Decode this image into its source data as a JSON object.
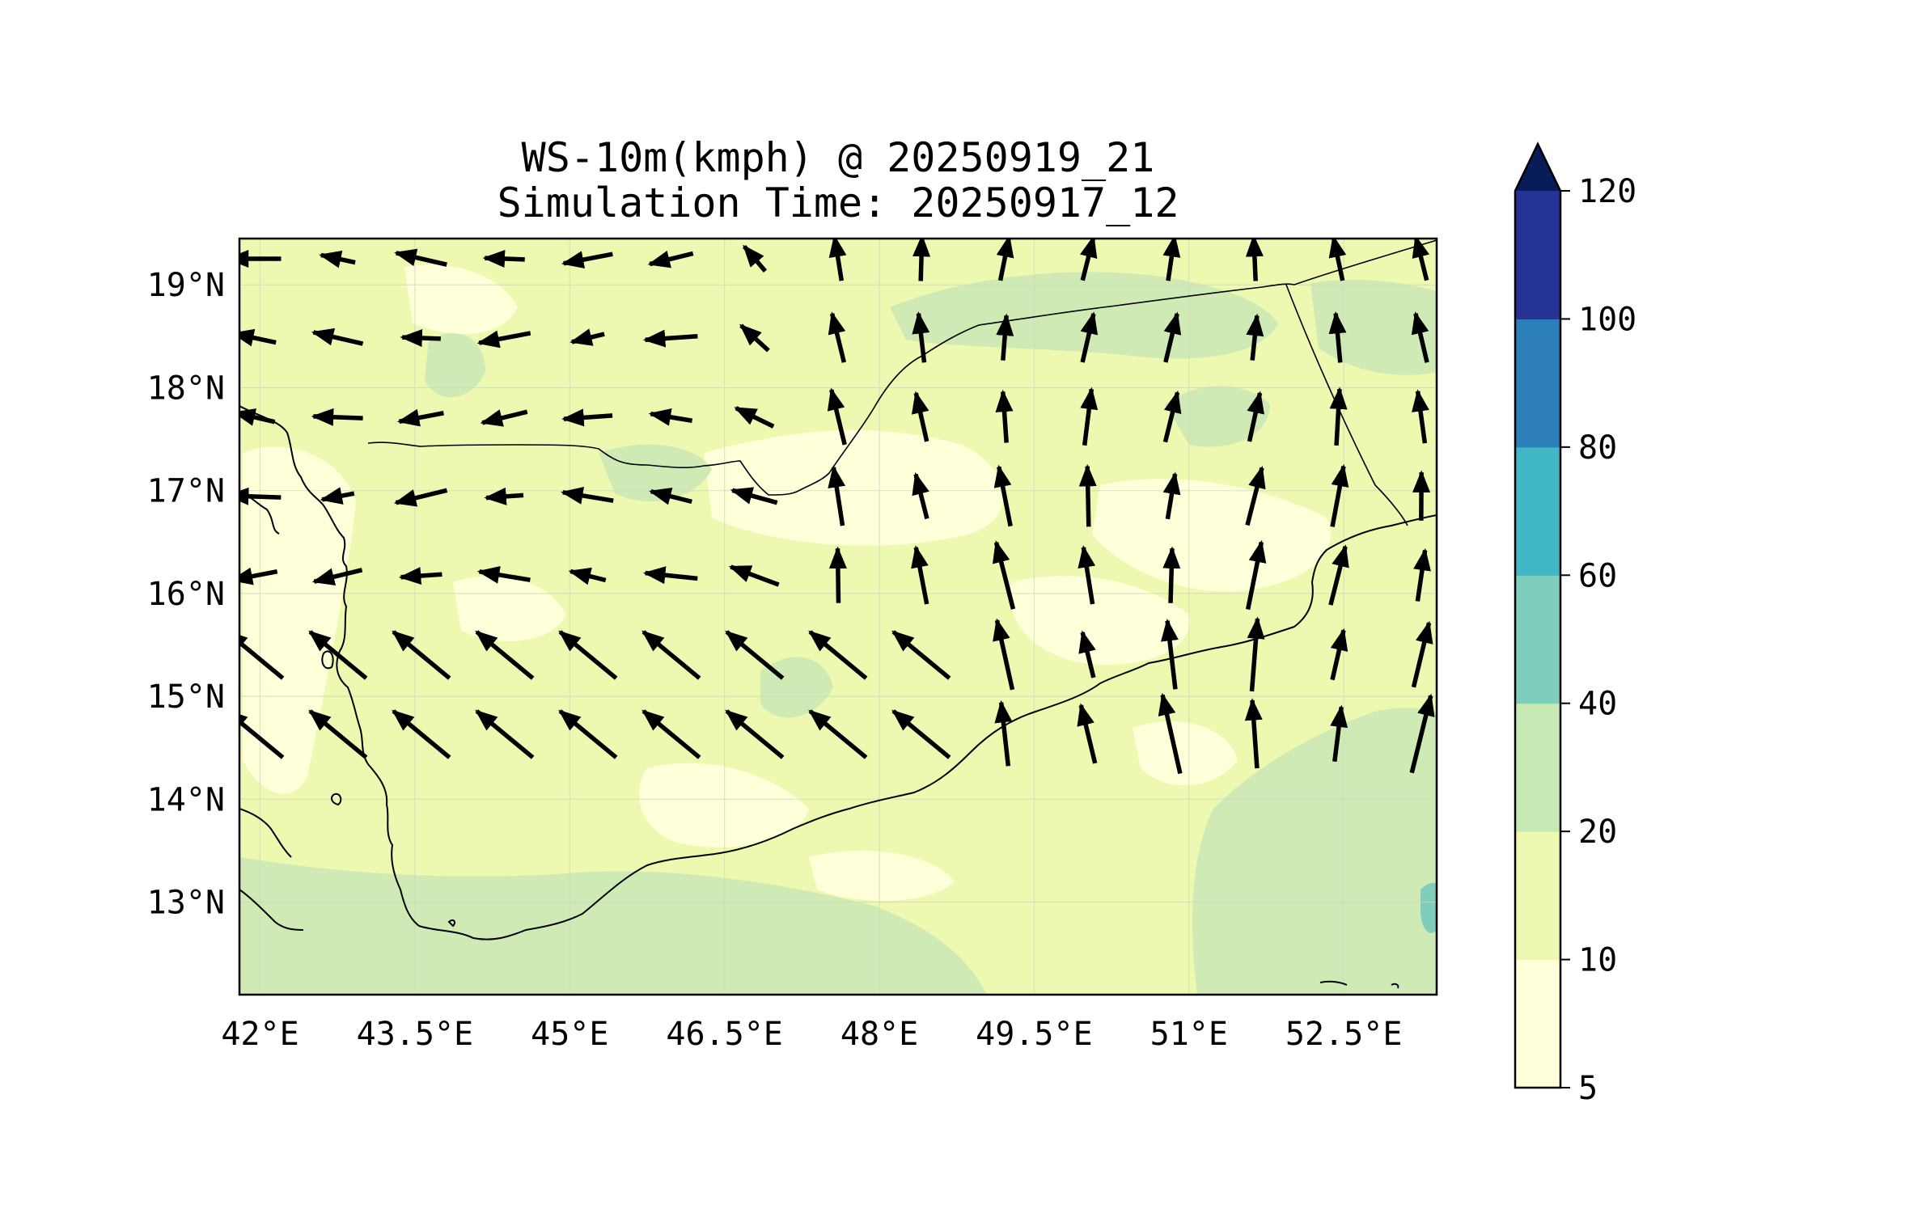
{
  "title": {
    "line1": "WS-10m(kmph) @ 20250919_21",
    "line2": "Simulation Time: 20250917_12"
  },
  "axes": {
    "lon_ticks": [
      "42°E",
      "43.5°E",
      "45°E",
      "46.5°E",
      "48°E",
      "49.5°E",
      "51°E",
      "52.5°E"
    ],
    "lat_ticks": [
      "19°N",
      "18°N",
      "17°N",
      "16°N",
      "15°N",
      "14°N",
      "13°N"
    ]
  },
  "colorbar": {
    "levels": [
      "5",
      "10",
      "20",
      "40",
      "60",
      "80",
      "100",
      "120"
    ],
    "colors": [
      "#ffffd9",
      "#edf8b1",
      "#c7e9b4",
      "#7fcdbb",
      "#41b6c4",
      "#2c7fb8",
      "#253494",
      "#081d58"
    ],
    "extend": "max"
  },
  "field": {
    "base_color": "#edf8b1",
    "calm_color": "#ffffff",
    "moderate_color": "#d2edb8",
    "strong_color": "#7fcdbb"
  },
  "vector_color": "#000000"
}
